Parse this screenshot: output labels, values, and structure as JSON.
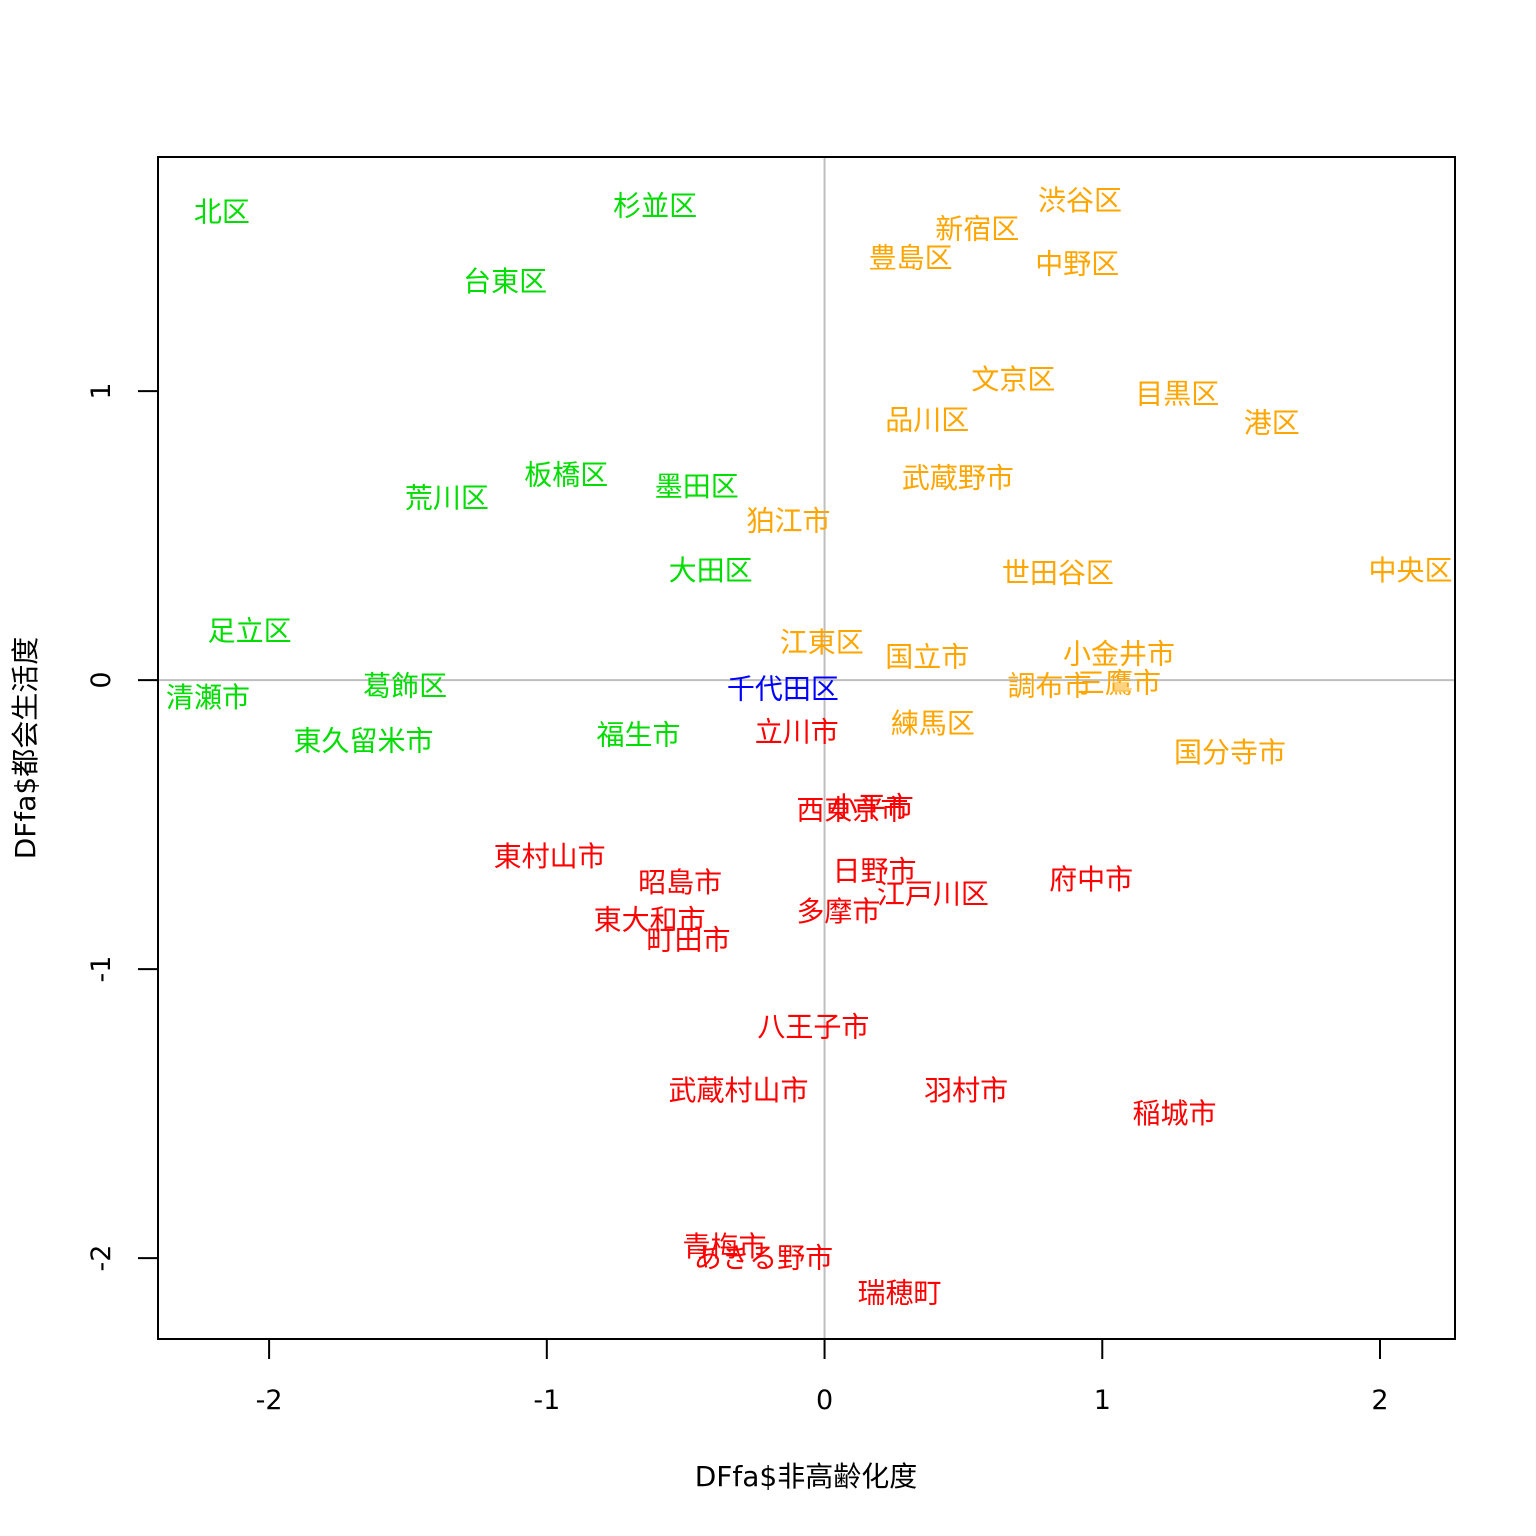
{
  "chart_data": {
    "type": "scatter",
    "title": "",
    "xlabel": "DFfa$非高齢化度",
    "ylabel": "DFfa$都会生活度",
    "xlim": [
      -2.4,
      2.27
    ],
    "ylim": [
      -2.28,
      1.81
    ],
    "xticks": [
      -2,
      -1,
      0,
      1,
      2
    ],
    "yticks": [
      -2,
      -1,
      0,
      1
    ],
    "xtick_labels": [
      "-2",
      "-1",
      "0",
      "1",
      "2"
    ],
    "ytick_labels": [
      "-2",
      "-1",
      "0",
      "1"
    ],
    "reference_lines": {
      "x": 0,
      "y": 0,
      "color": "#bebebe"
    },
    "grid": false,
    "colors": {
      "green": "#00dd00",
      "orange": "#ffa500",
      "red": "#ff0000",
      "blue": "#0000ff"
    },
    "points": [
      {
        "label": "北区",
        "x": -2.17,
        "y": 1.62,
        "color": "green"
      },
      {
        "label": "杉並区",
        "x": -0.61,
        "y": 1.64,
        "color": "green"
      },
      {
        "label": "台東区",
        "x": -1.15,
        "y": 1.38,
        "color": "green"
      },
      {
        "label": "荒川区",
        "x": -1.36,
        "y": 0.63,
        "color": "green"
      },
      {
        "label": "板橋区",
        "x": -0.93,
        "y": 0.71,
        "color": "green"
      },
      {
        "label": "墨田区",
        "x": -0.46,
        "y": 0.67,
        "color": "green"
      },
      {
        "label": "大田区",
        "x": -0.41,
        "y": 0.38,
        "color": "green"
      },
      {
        "label": "足立区",
        "x": -2.07,
        "y": 0.17,
        "color": "green"
      },
      {
        "label": "葛飾区",
        "x": -1.51,
        "y": -0.02,
        "color": "green"
      },
      {
        "label": "清瀬市",
        "x": -2.22,
        "y": -0.06,
        "color": "green"
      },
      {
        "label": "東久留米市",
        "x": -1.66,
        "y": -0.21,
        "color": "green"
      },
      {
        "label": "福生市",
        "x": -0.67,
        "y": -0.19,
        "color": "green"
      },
      {
        "label": "渋谷区",
        "x": 0.92,
        "y": 1.66,
        "color": "orange"
      },
      {
        "label": "新宿区",
        "x": 0.55,
        "y": 1.56,
        "color": "orange"
      },
      {
        "label": "豊島区",
        "x": 0.31,
        "y": 1.46,
        "color": "orange"
      },
      {
        "label": "中野区",
        "x": 0.91,
        "y": 1.44,
        "color": "orange"
      },
      {
        "label": "文京区",
        "x": 0.68,
        "y": 1.04,
        "color": "orange"
      },
      {
        "label": "目黒区",
        "x": 1.27,
        "y": 0.99,
        "color": "orange"
      },
      {
        "label": "品川区",
        "x": 0.37,
        "y": 0.9,
        "color": "orange"
      },
      {
        "label": "港区",
        "x": 1.61,
        "y": 0.89,
        "color": "orange"
      },
      {
        "label": "武蔵野市",
        "x": 0.48,
        "y": 0.7,
        "color": "orange"
      },
      {
        "label": "狛江市",
        "x": -0.13,
        "y": 0.55,
        "color": "orange"
      },
      {
        "label": "世田谷区",
        "x": 0.84,
        "y": 0.37,
        "color": "orange"
      },
      {
        "label": "中央区",
        "x": 2.11,
        "y": 0.38,
        "color": "orange"
      },
      {
        "label": "江東区",
        "x": -0.01,
        "y": 0.13,
        "color": "orange"
      },
      {
        "label": "国立市",
        "x": 0.37,
        "y": 0.08,
        "color": "orange"
      },
      {
        "label": "小金井市",
        "x": 1.06,
        "y": 0.09,
        "color": "orange"
      },
      {
        "label": "調布市",
        "x": 0.81,
        "y": -0.02,
        "color": "orange"
      },
      {
        "label": "三鷹市",
        "x": 1.06,
        "y": -0.01,
        "color": "orange"
      },
      {
        "label": "練馬区",
        "x": 0.39,
        "y": -0.15,
        "color": "orange"
      },
      {
        "label": "国分寺市",
        "x": 1.46,
        "y": -0.25,
        "color": "orange"
      },
      {
        "label": "千代田区",
        "x": -0.15,
        "y": -0.03,
        "color": "blue"
      },
      {
        "label": "立川市",
        "x": -0.1,
        "y": -0.18,
        "color": "red"
      },
      {
        "label": "西東京市",
        "x": 0.1,
        "y": -0.45,
        "color": "red"
      },
      {
        "label": "小平市",
        "x": 0.17,
        "y": -0.44,
        "color": "red"
      },
      {
        "label": "東村山市",
        "x": -0.99,
        "y": -0.61,
        "color": "red"
      },
      {
        "label": "昭島市",
        "x": -0.52,
        "y": -0.7,
        "color": "red"
      },
      {
        "label": "日野市",
        "x": 0.18,
        "y": -0.66,
        "color": "red"
      },
      {
        "label": "府中市",
        "x": 0.96,
        "y": -0.69,
        "color": "red"
      },
      {
        "label": "江戸川区",
        "x": 0.39,
        "y": -0.74,
        "color": "red"
      },
      {
        "label": "多摩市",
        "x": 0.05,
        "y": -0.8,
        "color": "red"
      },
      {
        "label": "東大和市",
        "x": -0.63,
        "y": -0.83,
        "color": "red"
      },
      {
        "label": "町田市",
        "x": -0.49,
        "y": -0.9,
        "color": "red"
      },
      {
        "label": "八王子市",
        "x": -0.04,
        "y": -1.2,
        "color": "red"
      },
      {
        "label": "武蔵村山市",
        "x": -0.31,
        "y": -1.42,
        "color": "red"
      },
      {
        "label": "羽村市",
        "x": 0.51,
        "y": -1.42,
        "color": "red"
      },
      {
        "label": "稲城市",
        "x": 1.26,
        "y": -1.5,
        "color": "red"
      },
      {
        "label": "青梅市",
        "x": -0.36,
        "y": -1.96,
        "color": "red"
      },
      {
        "label": "あきる野市",
        "x": -0.22,
        "y": -2.0,
        "color": "red"
      },
      {
        "label": "瑞穂町",
        "x": 0.27,
        "y": -2.12,
        "color": "red"
      }
    ]
  }
}
